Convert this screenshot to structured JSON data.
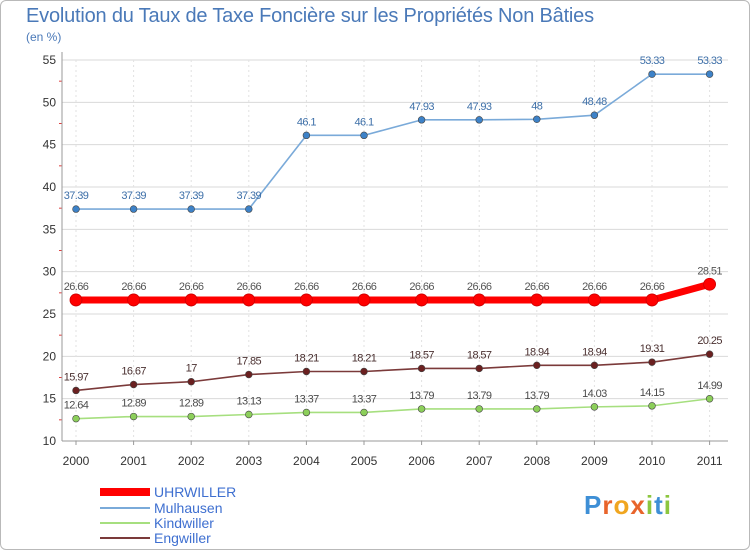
{
  "chart_title": "Evolution du Taux de Taxe Foncière sur les Propriétés Non Bâties",
  "chart_subtitle": "(en %)",
  "logo": {
    "text": "Proxiti",
    "letters": [
      "P",
      "r",
      "o",
      "x",
      "i",
      "t",
      "i"
    ],
    "colors": [
      "#3e8fd6",
      "#e8642b",
      "#f0a620",
      "#e8642b",
      "#8cc63f",
      "#3e8fd6",
      "#8cc63f"
    ]
  },
  "chart_data": {
    "type": "line",
    "title": "Evolution du Taux de Taxe Foncière sur les Propriétés Non Bâties",
    "ylabel": "(en %)",
    "xlabel": "",
    "x": [
      "2000",
      "2001",
      "2002",
      "2003",
      "2004",
      "2005",
      "2006",
      "2007",
      "2008",
      "2009",
      "2010",
      "2011"
    ],
    "ylim": [
      10,
      55
    ],
    "yticks": [
      "10",
      "15",
      "20",
      "25",
      "30",
      "35",
      "40",
      "45",
      "50",
      "55"
    ],
    "grid": true,
    "legend_position": "bottom-left",
    "series": [
      {
        "name": "UHRWILLER",
        "color": "#ff0000",
        "label_color": "#555555",
        "highlight": true,
        "values": [
          26.66,
          26.66,
          26.66,
          26.66,
          26.66,
          26.66,
          26.66,
          26.66,
          26.66,
          26.66,
          26.66,
          28.51
        ],
        "labels": [
          "26.66",
          "26.66",
          "26.66",
          "26.66",
          "26.66",
          "26.66",
          "26.66",
          "26.66",
          "26.66",
          "26.66",
          "26.66",
          "28.51"
        ]
      },
      {
        "name": "Mulhausen",
        "color": "#7aaad9",
        "marker": "#3d82c8",
        "label_color": "#3d6fa8",
        "values": [
          37.39,
          37.39,
          37.39,
          37.39,
          46.1,
          46.1,
          47.93,
          47.93,
          48,
          48.48,
          53.33,
          53.33
        ],
        "labels": [
          "37.39",
          "37.39",
          "37.39",
          "37.39",
          "46.1",
          "46.1",
          "47.93",
          "47.93",
          "48",
          "48.48",
          "53.33",
          "53.33"
        ]
      },
      {
        "name": "Kindwiller",
        "color": "#a6df7f",
        "marker": "#8ccf5a",
        "label_color": "#4a4a4a",
        "values": [
          12.64,
          12.89,
          12.89,
          13.13,
          13.37,
          13.37,
          13.79,
          13.79,
          13.79,
          14.03,
          14.15,
          14.99
        ],
        "labels": [
          "12.64",
          "12.89",
          "12.89",
          "13.13",
          "13.37",
          "13.37",
          "13.79",
          "13.79",
          "13.79",
          "14.03",
          "14.15",
          "14.99"
        ]
      },
      {
        "name": "Engwiller",
        "color": "#7b3a3a",
        "marker": "#6b2020",
        "label_color": "#4a3030",
        "values": [
          15.97,
          16.67,
          17,
          17.85,
          18.21,
          18.21,
          18.57,
          18.57,
          18.94,
          18.94,
          19.31,
          20.25
        ],
        "labels": [
          "15.97",
          "16.67",
          "17",
          "17.85",
          "18.21",
          "18.21",
          "18.57",
          "18.57",
          "18.94",
          "18.94",
          "19.31",
          "20.25"
        ]
      }
    ]
  }
}
